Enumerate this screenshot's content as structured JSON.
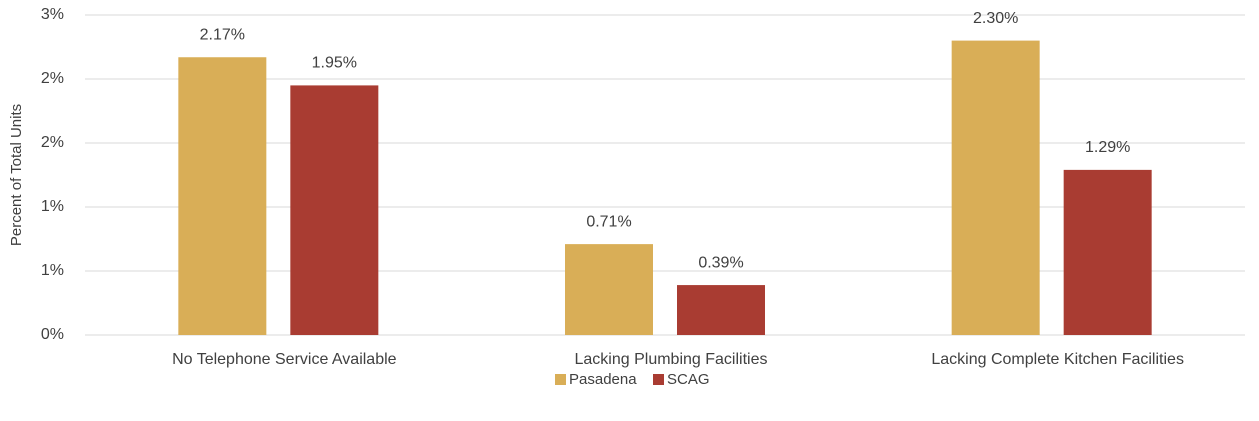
{
  "chart_data": {
    "type": "bar",
    "y_label": "Percent of Total Units",
    "categories": [
      "No Telephone Service Available",
      "Lacking Plumbing Facilities",
      "Lacking Complete Kitchen Facilities"
    ],
    "series": [
      {
        "name": "Pasadena",
        "color": "#d9ae57",
        "values": [
          2.17,
          0.71,
          2.3
        ],
        "value_labels": [
          "2.17%",
          "0.71%",
          "2.30%"
        ]
      },
      {
        "name": "SCAG",
        "color": "#a93c32",
        "values": [
          1.95,
          0.39,
          1.29
        ],
        "value_labels": [
          "1.95%",
          "0.39%",
          "1.29%"
        ]
      }
    ],
    "ylim": [
      0,
      2.5
    ],
    "yticks": [
      {
        "value": 0,
        "label": "0%"
      },
      {
        "value": 0.5,
        "label": "1%"
      },
      {
        "value": 1,
        "label": "1%"
      },
      {
        "value": 1.5,
        "label": "2%"
      },
      {
        "value": 2,
        "label": "2%"
      },
      {
        "value": 2.5,
        "label": "3%"
      }
    ],
    "grid": true,
    "legend": "bottom"
  }
}
